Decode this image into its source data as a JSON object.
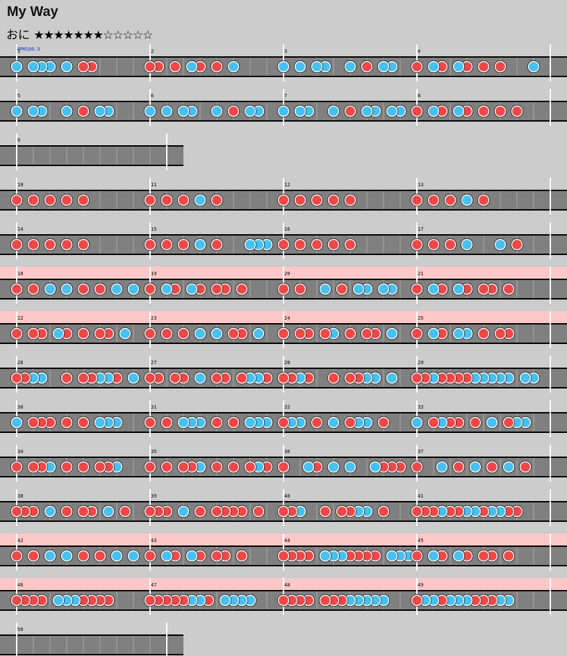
{
  "song": {
    "title": "My Way",
    "difficulty_label": "おに",
    "stars_filled": "★★★★★★★",
    "stars_empty": "☆☆☆☆☆",
    "level": 7,
    "level_max": 12,
    "bpm_label": "BPM100.5"
  },
  "colors": {
    "background": "#cccccc",
    "lane": "#808080",
    "gogo_band": "#ffc8c8",
    "don": "#f04848",
    "ka": "#48c0f0"
  },
  "chart": {
    "subdivisions": 8,
    "rows": [
      {
        "gogo": false,
        "measures": [
          {
            "number": "1",
            "notes": "k.kkk.k.dd"
          },
          {
            "number": "2",
            "notes": "dd.d.kd.d.k"
          },
          {
            "number": "3",
            "notes": "k.k.kk..k.d.kk"
          },
          {
            "number": "4",
            "notes": "d.kd.kd.d.d...k"
          }
        ]
      },
      {
        "gogo": false,
        "measures": [
          {
            "number": "5",
            "notes": "k.kk..k.d.kk"
          },
          {
            "number": "6",
            "notes": "k.k.kk..k.d.kk"
          },
          {
            "number": "7",
            "notes": "k.kk..k.d.kk.kk"
          },
          {
            "number": "8",
            "notes": "d.kd.kd.d.d.d"
          }
        ]
      },
      {
        "gogo": false,
        "partial": 0.5,
        "measures": [
          {
            "number": "9",
            "notes": ""
          }
        ]
      },
      {
        "gogo": false,
        "measures": [
          {
            "number": "10",
            "notes": "d.d.d.d.d"
          },
          {
            "number": "11",
            "notes": "d.d.d.k.d"
          },
          {
            "number": "12",
            "notes": "d.d.d.d.d"
          },
          {
            "number": "13",
            "notes": "d.d.d.k.d"
          }
        ]
      },
      {
        "gogo": false,
        "measures": [
          {
            "number": "14",
            "notes": "d.d.d.d.d"
          },
          {
            "number": "15",
            "notes": "d.d.d.k.d...kkk"
          },
          {
            "number": "16",
            "notes": "d.d.d.d.d"
          },
          {
            "number": "17",
            "notes": "d.d.d.k...k.d"
          }
        ]
      },
      {
        "gogo": true,
        "measures": [
          {
            "number": "18",
            "notes": "d.d.k.k.d.d.k.k"
          },
          {
            "number": "19",
            "notes": "d.kd.kd.dd.d"
          },
          {
            "number": "20",
            "notes": "d.d..k.d.kk.kk"
          },
          {
            "number": "21",
            "notes": "d.kd.kd.dd.d"
          }
        ]
      },
      {
        "gogo": true,
        "measures": [
          {
            "number": "22",
            "notes": "d.dd.kd.d.dd.k"
          },
          {
            "number": "23",
            "notes": "d.d.d.k.k.dd.k"
          },
          {
            "number": "24",
            "notes": "d.dd.dk.d.dd.k"
          },
          {
            "number": "25",
            "notes": "d.kd.kk.d.dd"
          }
        ]
      },
      {
        "gogo": false,
        "measures": [
          {
            "number": "26",
            "notes": "ddkk..d.ddkkd.k"
          },
          {
            "number": "27",
            "notes": "dd.dd.k.dd.dkkd.k"
          },
          {
            "number": "28",
            "notes": "ddkd..d.ddkk.k"
          },
          {
            "number": "29",
            "notes": "ddkddddkkkkk.kk"
          }
        ]
      },
      {
        "gogo": false,
        "measures": [
          {
            "number": "30",
            "notes": "k.ddd.d.d.kkk"
          },
          {
            "number": "31",
            "notes": "d.d.kkk.d.d.kkk"
          },
          {
            "number": "32",
            "notes": "dkk.d.k.dkk.d"
          },
          {
            "number": "33",
            "notes": "k.dkdd.d.k.dkk"
          }
        ]
      },
      {
        "gogo": false,
        "measures": [
          {
            "number": "34",
            "notes": "d.ddk.d.d.ddk"
          },
          {
            "number": "35",
            "notes": "d.d.ddk.d.d.dkd.d"
          },
          {
            "number": "36",
            "notes": "d..kd.k.k..kddd"
          },
          {
            "number": "37",
            "notes": "d..k.d.k.d.k.d"
          }
        ]
      },
      {
        "gogo": false,
        "measures": [
          {
            "number": "38",
            "notes": "ddd.k.d.dd.k.d"
          },
          {
            "number": "39",
            "notes": "ddd.k.d.dddd.d"
          },
          {
            "number": "40",
            "notes": "ddk..d.ddkk.d"
          },
          {
            "number": "41",
            "notes": "dddkddkkdkkdd"
          }
        ]
      },
      {
        "gogo": true,
        "measures": [
          {
            "number": "42",
            "notes": "d.d.k.k.d.d.k.k"
          },
          {
            "number": "43",
            "notes": "d.kd.kd.dd.d"
          },
          {
            "number": "44",
            "notes": "dddd.kkkdddd.kkkd"
          },
          {
            "number": "45",
            "notes": "d.kd.kd.dd.d"
          }
        ]
      },
      {
        "gogo": true,
        "measures": [
          {
            "number": "46",
            "notes": "dddd.kkkdddd"
          },
          {
            "number": "47",
            "notes": "dddddkkd.kkkk"
          },
          {
            "number": "48",
            "notes": "dddd.dddkkkkk"
          },
          {
            "number": "49",
            "notes": "dkkdkkkdddkk"
          }
        ]
      },
      {
        "gogo": false,
        "partial": 0.5,
        "measures": [
          {
            "number": "50",
            "notes": ""
          }
        ]
      }
    ]
  }
}
